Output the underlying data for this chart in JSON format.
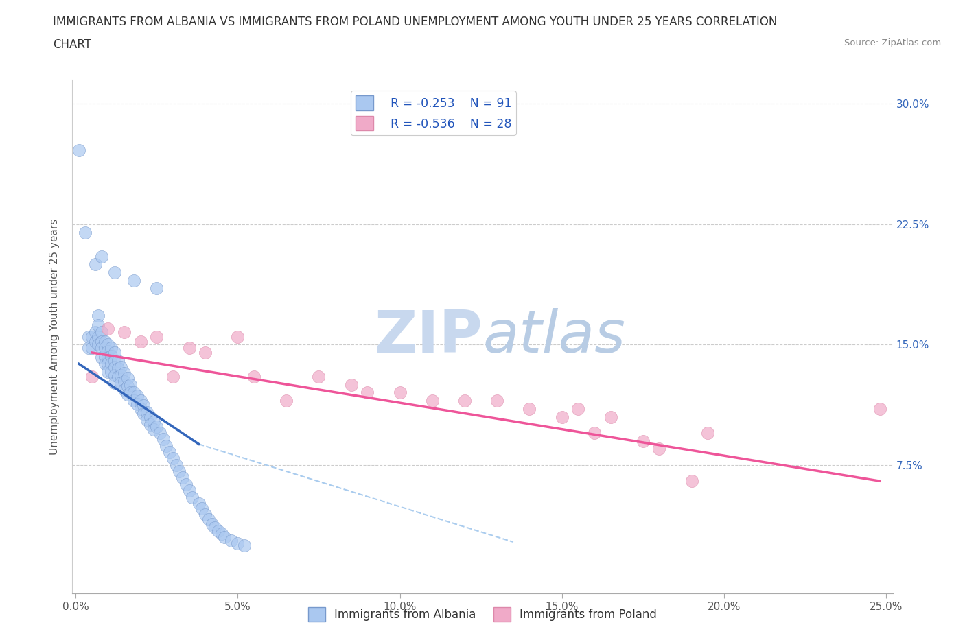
{
  "title_line1": "IMMIGRANTS FROM ALBANIA VS IMMIGRANTS FROM POLAND UNEMPLOYMENT AMONG YOUTH UNDER 25 YEARS CORRELATION",
  "title_line2": "CHART",
  "source_text": "Source: ZipAtlas.com",
  "ylabel": "Unemployment Among Youth under 25 years",
  "xlabel_albania": "Immigrants from Albania",
  "xlabel_poland": "Immigrants from Poland",
  "xlim": [
    -0.001,
    0.252
  ],
  "ylim": [
    -0.005,
    0.315
  ],
  "xticks": [
    0.0,
    0.05,
    0.1,
    0.15,
    0.2,
    0.25
  ],
  "yticks": [
    0.0,
    0.075,
    0.15,
    0.225,
    0.3
  ],
  "ytick_labels_right": [
    "",
    "7.5%",
    "15.0%",
    "22.5%",
    "30.0%"
  ],
  "xtick_labels": [
    "0.0%",
    "5.0%",
    "10.0%",
    "15.0%",
    "20.0%",
    "25.0%"
  ],
  "legend_albania_R": "R = -0.253",
  "legend_albania_N": "N = 91",
  "legend_poland_R": "R = -0.536",
  "legend_poland_N": "N = 28",
  "color_albania": "#aac8f0",
  "color_poland": "#f0aac8",
  "color_albania_line": "#3366bb",
  "color_poland_line": "#ee5599",
  "color_dashed_line": "#aaccee",
  "watermark_zip": "ZIP",
  "watermark_atlas": "atlas",
  "watermark_color_zip": "#c8d8ee",
  "watermark_color_atlas": "#b8cce4",
  "albania_x": [
    0.001,
    0.004,
    0.004,
    0.005,
    0.005,
    0.006,
    0.006,
    0.007,
    0.007,
    0.007,
    0.007,
    0.008,
    0.008,
    0.008,
    0.008,
    0.009,
    0.009,
    0.009,
    0.009,
    0.01,
    0.01,
    0.01,
    0.01,
    0.01,
    0.011,
    0.011,
    0.011,
    0.011,
    0.012,
    0.012,
    0.012,
    0.012,
    0.012,
    0.013,
    0.013,
    0.013,
    0.014,
    0.014,
    0.014,
    0.015,
    0.015,
    0.015,
    0.016,
    0.016,
    0.016,
    0.017,
    0.017,
    0.018,
    0.018,
    0.019,
    0.019,
    0.02,
    0.02,
    0.021,
    0.021,
    0.022,
    0.022,
    0.023,
    0.023,
    0.024,
    0.024,
    0.025,
    0.026,
    0.027,
    0.028,
    0.029,
    0.03,
    0.031,
    0.032,
    0.033,
    0.034,
    0.035,
    0.036,
    0.038,
    0.039,
    0.04,
    0.041,
    0.042,
    0.043,
    0.044,
    0.045,
    0.046,
    0.048,
    0.05,
    0.052,
    0.003,
    0.006,
    0.008,
    0.012,
    0.018,
    0.025
  ],
  "albania_y": [
    0.271,
    0.155,
    0.148,
    0.155,
    0.148,
    0.158,
    0.152,
    0.168,
    0.162,
    0.155,
    0.15,
    0.158,
    0.152,
    0.148,
    0.142,
    0.152,
    0.148,
    0.142,
    0.138,
    0.15,
    0.146,
    0.142,
    0.138,
    0.133,
    0.148,
    0.143,
    0.138,
    0.133,
    0.145,
    0.14,
    0.136,
    0.131,
    0.126,
    0.14,
    0.135,
    0.13,
    0.136,
    0.131,
    0.126,
    0.132,
    0.127,
    0.122,
    0.129,
    0.124,
    0.119,
    0.125,
    0.12,
    0.12,
    0.115,
    0.118,
    0.113,
    0.115,
    0.11,
    0.112,
    0.107,
    0.108,
    0.103,
    0.105,
    0.1,
    0.102,
    0.097,
    0.099,
    0.095,
    0.091,
    0.087,
    0.083,
    0.079,
    0.075,
    0.071,
    0.067,
    0.063,
    0.059,
    0.055,
    0.051,
    0.048,
    0.044,
    0.041,
    0.038,
    0.036,
    0.034,
    0.032,
    0.03,
    0.028,
    0.026,
    0.025,
    0.22,
    0.2,
    0.205,
    0.195,
    0.19,
    0.185
  ],
  "poland_x": [
    0.005,
    0.01,
    0.015,
    0.02,
    0.025,
    0.03,
    0.035,
    0.04,
    0.05,
    0.055,
    0.065,
    0.075,
    0.085,
    0.09,
    0.1,
    0.11,
    0.12,
    0.13,
    0.14,
    0.15,
    0.155,
    0.16,
    0.165,
    0.175,
    0.18,
    0.19,
    0.195,
    0.248
  ],
  "poland_y": [
    0.13,
    0.16,
    0.158,
    0.152,
    0.155,
    0.13,
    0.148,
    0.145,
    0.155,
    0.13,
    0.115,
    0.13,
    0.125,
    0.12,
    0.12,
    0.115,
    0.115,
    0.115,
    0.11,
    0.105,
    0.11,
    0.095,
    0.105,
    0.09,
    0.085,
    0.065,
    0.095,
    0.11
  ],
  "albania_line_x": [
    0.001,
    0.038
  ],
  "albania_line_y": [
    0.138,
    0.088
  ],
  "dash_line_x": [
    0.038,
    0.135
  ],
  "dash_line_y": [
    0.088,
    0.027
  ],
  "poland_line_x": [
    0.005,
    0.248
  ],
  "poland_line_y": [
    0.145,
    0.065
  ]
}
